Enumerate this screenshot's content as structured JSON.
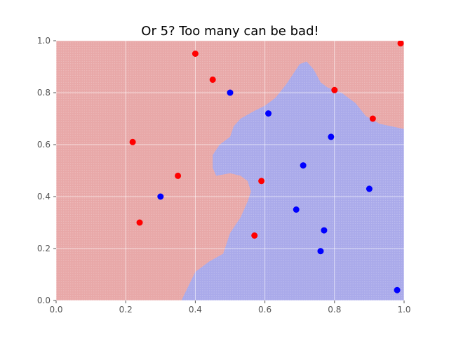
{
  "chart_data": {
    "type": "scatter",
    "title": "Or 5? Too many can be bad!",
    "xlabel": "",
    "ylabel": "",
    "xlim": [
      0.0,
      1.0
    ],
    "ylim": [
      0.0,
      1.0
    ],
    "grid": true,
    "x_tick_values": [
      0.0,
      0.2,
      0.4,
      0.6,
      0.8,
      1.0
    ],
    "x_tick_labels": [
      "0.0",
      "0.2",
      "0.4",
      "0.6",
      "0.8",
      "1.0"
    ],
    "y_tick_values": [
      0.0,
      0.2,
      0.4,
      0.6,
      0.8,
      1.0
    ],
    "y_tick_labels": [
      "0.0",
      "0.2",
      "0.4",
      "0.6",
      "0.8",
      "1.0"
    ],
    "colors": {
      "red_class": "#ff0000",
      "blue_class": "#0000ff",
      "red_region": "#e8a8a8",
      "blue_region": "#aaaaea",
      "grid": "#ffffff",
      "tick_text": "#555555",
      "title_text": "#000000"
    },
    "series": [
      {
        "name": "red",
        "color": "#ff0000",
        "points": [
          {
            "x": 0.4,
            "y": 0.95
          },
          {
            "x": 0.45,
            "y": 0.85
          },
          {
            "x": 0.22,
            "y": 0.61
          },
          {
            "x": 0.35,
            "y": 0.48
          },
          {
            "x": 0.24,
            "y": 0.3
          },
          {
            "x": 0.59,
            "y": 0.46
          },
          {
            "x": 0.57,
            "y": 0.25
          },
          {
            "x": 0.8,
            "y": 0.81
          },
          {
            "x": 0.91,
            "y": 0.7
          },
          {
            "x": 0.99,
            "y": 0.99
          }
        ]
      },
      {
        "name": "blue",
        "color": "#0000ff",
        "points": [
          {
            "x": 0.5,
            "y": 0.8
          },
          {
            "x": 0.61,
            "y": 0.72
          },
          {
            "x": 0.79,
            "y": 0.63
          },
          {
            "x": 0.71,
            "y": 0.52
          },
          {
            "x": 0.9,
            "y": 0.43
          },
          {
            "x": 0.3,
            "y": 0.4
          },
          {
            "x": 0.69,
            "y": 0.35
          },
          {
            "x": 0.77,
            "y": 0.27
          },
          {
            "x": 0.76,
            "y": 0.19
          },
          {
            "x": 0.98,
            "y": 0.04
          }
        ]
      }
    ],
    "decision_region": {
      "background_class": "red",
      "blue_region_boundary": [
        {
          "x": 0.36,
          "y": 0.0
        },
        {
          "x": 0.4,
          "y": 0.11
        },
        {
          "x": 0.44,
          "y": 0.15
        },
        {
          "x": 0.48,
          "y": 0.18
        },
        {
          "x": 0.5,
          "y": 0.26
        },
        {
          "x": 0.53,
          "y": 0.32
        },
        {
          "x": 0.55,
          "y": 0.38
        },
        {
          "x": 0.56,
          "y": 0.42
        },
        {
          "x": 0.55,
          "y": 0.46
        },
        {
          "x": 0.53,
          "y": 0.48
        },
        {
          "x": 0.5,
          "y": 0.49
        },
        {
          "x": 0.46,
          "y": 0.48
        },
        {
          "x": 0.45,
          "y": 0.51
        },
        {
          "x": 0.45,
          "y": 0.56
        },
        {
          "x": 0.47,
          "y": 0.6
        },
        {
          "x": 0.5,
          "y": 0.63
        },
        {
          "x": 0.51,
          "y": 0.67
        },
        {
          "x": 0.53,
          "y": 0.7
        },
        {
          "x": 0.57,
          "y": 0.73
        },
        {
          "x": 0.6,
          "y": 0.75
        },
        {
          "x": 0.63,
          "y": 0.78
        },
        {
          "x": 0.66,
          "y": 0.83
        },
        {
          "x": 0.68,
          "y": 0.87
        },
        {
          "x": 0.7,
          "y": 0.91
        },
        {
          "x": 0.72,
          "y": 0.92
        },
        {
          "x": 0.74,
          "y": 0.89
        },
        {
          "x": 0.76,
          "y": 0.84
        },
        {
          "x": 0.78,
          "y": 0.82
        },
        {
          "x": 0.82,
          "y": 0.8
        },
        {
          "x": 0.86,
          "y": 0.76
        },
        {
          "x": 0.89,
          "y": 0.71
        },
        {
          "x": 0.93,
          "y": 0.68
        },
        {
          "x": 1.0,
          "y": 0.66
        },
        {
          "x": 1.0,
          "y": 0.0
        }
      ]
    }
  }
}
